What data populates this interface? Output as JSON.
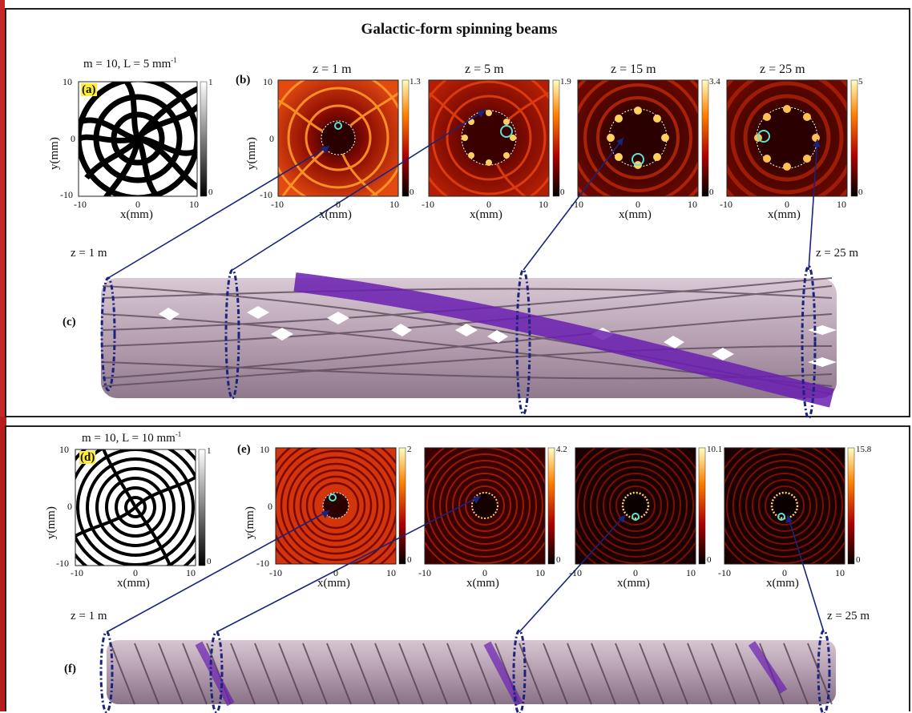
{
  "title": "Galactic-form spinning beams",
  "colors": {
    "frame": "#222222",
    "arrow": "#1a237e",
    "fiber": "#b9a4b4",
    "highlight": "#6a1fb0",
    "accent_bar": "#c62828"
  },
  "top": {
    "panel_a": {
      "label": "(a)",
      "param": "m = 10, L = 5 mm",
      "param_sup": "-1",
      "cbar_max": "1",
      "cbar_min": "0"
    },
    "panel_b": {
      "label": "(b)"
    },
    "slices": [
      {
        "z": "z = 1 m",
        "cbar_max": "1.3",
        "cbar_min": "0"
      },
      {
        "z": "z = 5 m",
        "cbar_max": "1.9",
        "cbar_min": "0"
      },
      {
        "z": "z = 15 m",
        "cbar_max": "3.4",
        "cbar_min": "0"
      },
      {
        "z": "z = 25 m",
        "cbar_max": "5",
        "cbar_min": "0"
      }
    ],
    "panel_c": {
      "label": "(c)",
      "z_start": "z = 1 m",
      "z_end": "z = 25 m"
    }
  },
  "bottom": {
    "panel_d": {
      "label": "(d)",
      "param": "m = 10, L = 10 mm",
      "param_sup": "-1",
      "cbar_max": "1",
      "cbar_min": "0"
    },
    "panel_e": {
      "label": "(e)"
    },
    "slices": [
      {
        "cbar_max": "2",
        "cbar_min": "0"
      },
      {
        "cbar_max": "4.2",
        "cbar_min": "0"
      },
      {
        "cbar_max": "10.1",
        "cbar_min": "0"
      },
      {
        "cbar_max": "15.8",
        "cbar_min": "0"
      }
    ],
    "panel_f": {
      "label": "(f)",
      "z_start": "z = 1 m",
      "z_end": "z = 25 m"
    }
  },
  "axes": {
    "xlabel": "x(mm)",
    "ylabel": "y(mm)",
    "tick_min": "-10",
    "tick_mid": "0",
    "tick_max": "10"
  }
}
